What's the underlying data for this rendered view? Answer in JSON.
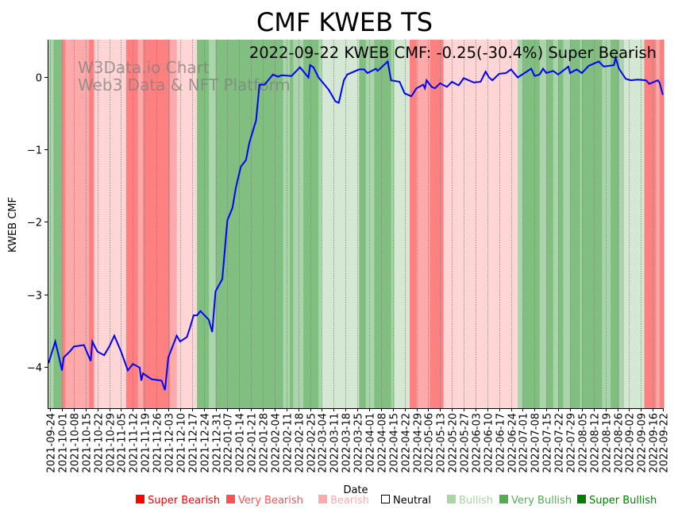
{
  "chart_data": {
    "type": "line",
    "title": "CMF KWEB TS",
    "annotation": "2022-09-22 KWEB CMF: -0.25(-30.4%) Super Bearish",
    "watermark": [
      "W3Data.io Chart",
      "Web3 Data & NFT Platform"
    ],
    "xlabel": "Date",
    "ylabel": "KWEB CMF",
    "start_date": "2021-09-24",
    "x_unit": "days since start_date",
    "xlim": [
      -1.5,
      363.5
    ],
    "ylim": [
      -4.57,
      0.51
    ],
    "yticks": [
      0,
      -1,
      -2,
      -3,
      -4
    ],
    "ytick_labels": [
      "0",
      "−1",
      "−2",
      "−3",
      "−4"
    ],
    "xtick_days": [
      0,
      7,
      14,
      21,
      28,
      35,
      42,
      49,
      56,
      63,
      70,
      77,
      84,
      91,
      98,
      105,
      112,
      119,
      126,
      133,
      140,
      147,
      154,
      161,
      168,
      175,
      182,
      189,
      196,
      203,
      210,
      217,
      224,
      231,
      238,
      245,
      252,
      259,
      266,
      273,
      280,
      287,
      294,
      301,
      308,
      315,
      322,
      329,
      336,
      343,
      350,
      357,
      363
    ],
    "xtick_labels": [
      "2021-09-24",
      "2021-10-01",
      "2021-10-08",
      "2021-10-15",
      "2021-10-22",
      "2021-10-29",
      "2021-11-05",
      "2021-11-12",
      "2021-11-19",
      "2021-11-26",
      "2021-12-03",
      "2021-12-10",
      "2021-12-17",
      "2021-12-24",
      "2021-12-31",
      "2022-01-07",
      "2022-01-14",
      "2022-01-21",
      "2022-01-28",
      "2022-02-04",
      "2022-02-11",
      "2022-02-18",
      "2022-02-25",
      "2022-03-04",
      "2022-03-11",
      "2022-03-18",
      "2022-03-25",
      "2022-04-01",
      "2022-04-08",
      "2022-04-15",
      "2022-04-22",
      "2022-04-29",
      "2022-05-06",
      "2022-05-13",
      "2022-05-20",
      "2022-05-27",
      "2022-06-03",
      "2022-06-10",
      "2022-06-17",
      "2022-06-24",
      "2022-07-01",
      "2022-07-08",
      "2022-07-15",
      "2022-07-22",
      "2022-07-29",
      "2022-08-05",
      "2022-08-12",
      "2022-08-19",
      "2022-08-26",
      "2022-09-02",
      "2022-09-09",
      "2022-09-16",
      "2022-09-22"
    ],
    "series": [
      {
        "name": "KWEB CMF",
        "color": "#0000ff",
        "x": [
          -1,
          3,
          5,
          7,
          8,
          12,
          14,
          20,
          24,
          25,
          28,
          32,
          35,
          38,
          42,
          46,
          49,
          53,
          54,
          55,
          60,
          66,
          68,
          70,
          75,
          77,
          81,
          83,
          85,
          87,
          89,
          94,
          96,
          98,
          102,
          105,
          108,
          110,
          113,
          116,
          118,
          122,
          124,
          127,
          132,
          135,
          137,
          143,
          148,
          153,
          154,
          156,
          159,
          165,
          169,
          171,
          174,
          176,
          183,
          186,
          188,
          193,
          194,
          200,
          202,
          207,
          210,
          214,
          217,
          221,
          222,
          223,
          226,
          228,
          231,
          235,
          238,
          242,
          245,
          251,
          255,
          258,
          260,
          262,
          266,
          270,
          273,
          277,
          281,
          285,
          287,
          290,
          292,
          294,
          298,
          301,
          307,
          308,
          312,
          315,
          319,
          325,
          328,
          334,
          335,
          337,
          341,
          344,
          348,
          353,
          355,
          360,
          361,
          363
        ],
        "values": [
          -3.95,
          -3.65,
          -3.84,
          -4.05,
          -3.87,
          -3.78,
          -3.72,
          -3.7,
          -3.92,
          -3.65,
          -3.79,
          -3.84,
          -3.72,
          -3.57,
          -3.79,
          -4.05,
          -3.96,
          -4.01,
          -4.19,
          -4.09,
          -4.17,
          -4.19,
          -4.32,
          -3.87,
          -3.57,
          -3.65,
          -3.59,
          -3.45,
          -3.29,
          -3.29,
          -3.23,
          -3.35,
          -3.52,
          -2.96,
          -2.79,
          -1.98,
          -1.81,
          -1.53,
          -1.24,
          -1.15,
          -0.91,
          -0.6,
          -0.11,
          -0.11,
          0.03,
          0.0,
          0.02,
          0.01,
          0.13,
          -0.01,
          0.16,
          0.13,
          -0.01,
          -0.18,
          -0.34,
          -0.36,
          -0.05,
          0.03,
          0.1,
          0.1,
          0.05,
          0.11,
          0.08,
          0.21,
          -0.05,
          -0.07,
          -0.23,
          -0.27,
          -0.16,
          -0.11,
          -0.16,
          -0.05,
          -0.14,
          -0.16,
          -0.09,
          -0.14,
          -0.07,
          -0.12,
          -0.02,
          -0.08,
          -0.07,
          0.07,
          -0.01,
          -0.05,
          0.04,
          0.05,
          0.1,
          -0.01,
          0.05,
          0.11,
          0.01,
          0.03,
          0.11,
          0.05,
          0.08,
          0.03,
          0.14,
          0.05,
          0.1,
          0.05,
          0.15,
          0.21,
          0.14,
          0.16,
          0.26,
          0.11,
          -0.03,
          -0.05,
          -0.04,
          -0.05,
          -0.1,
          -0.05,
          -0.08,
          -0.25
        ]
      }
    ],
    "band_colors": {
      "Super Bearish": "#ff8080",
      "Very Bearish": "#ffaaaa",
      "Bearish": "#ffd5d5",
      "Bullish": "#d5e8d4",
      "Very Bullish": "#aad5aa",
      "Super Bullish": "#80bf80"
    },
    "bands": [
      [
        -1.5,
        2,
        "Very Bullish"
      ],
      [
        2,
        7,
        "Super Bullish"
      ],
      [
        7,
        9,
        "Super Bearish"
      ],
      [
        9,
        23,
        "Very Bearish"
      ],
      [
        23,
        26,
        "Super Bearish"
      ],
      [
        26,
        45,
        "Bearish"
      ],
      [
        45,
        52,
        "Super Bearish"
      ],
      [
        52,
        55,
        "Very Bearish"
      ],
      [
        55,
        71,
        "Super Bearish"
      ],
      [
        71,
        75,
        "Very Bearish"
      ],
      [
        75,
        87,
        "Bearish"
      ],
      [
        87,
        94,
        "Super Bullish"
      ],
      [
        94,
        98,
        "Very Bullish"
      ],
      [
        98,
        138,
        "Super Bullish"
      ],
      [
        138,
        142,
        "Very Bullish"
      ],
      [
        142,
        144,
        "Super Bullish"
      ],
      [
        144,
        150,
        "Very Bullish"
      ],
      [
        150,
        159,
        "Super Bullish"
      ],
      [
        159,
        161,
        "Very Bullish"
      ],
      [
        161,
        183,
        "Bullish"
      ],
      [
        183,
        187,
        "Super Bullish"
      ],
      [
        187,
        192,
        "Very Bullish"
      ],
      [
        192,
        202,
        "Super Bullish"
      ],
      [
        202,
        204,
        "Very Bullish"
      ],
      [
        204,
        213,
        "Bullish"
      ],
      [
        213,
        217,
        "Super Bearish"
      ],
      [
        217,
        225,
        "Very Bearish"
      ],
      [
        225,
        233,
        "Super Bearish"
      ],
      [
        233,
        277,
        "Bearish"
      ],
      [
        277,
        280,
        "Very Bullish"
      ],
      [
        280,
        290,
        "Super Bullish"
      ],
      [
        290,
        294,
        "Very Bullish"
      ],
      [
        294,
        298,
        "Super Bullish"
      ],
      [
        298,
        301,
        "Very Bullish"
      ],
      [
        301,
        304,
        "Super Bullish"
      ],
      [
        304,
        308,
        "Very Bullish"
      ],
      [
        308,
        314,
        "Super Bullish"
      ],
      [
        314,
        315,
        "Very Bullish"
      ],
      [
        315,
        327,
        "Super Bullish"
      ],
      [
        327,
        332,
        "Very Bullish"
      ],
      [
        332,
        337,
        "Super Bullish"
      ],
      [
        337,
        340,
        "Very Bullish"
      ],
      [
        340,
        352,
        "Bullish"
      ],
      [
        352,
        359,
        "Super Bearish"
      ],
      [
        359,
        361,
        "Very Bearish"
      ],
      [
        361,
        363.5,
        "Super Bearish"
      ]
    ],
    "legend": [
      {
        "label": "Super Bearish",
        "color": "#ff0000"
      },
      {
        "label": "Very Bearish",
        "color": "#ff5050"
      },
      {
        "label": "Bearish",
        "color": "#ffaaaa"
      },
      {
        "label": "Neutral",
        "color": "#000000",
        "hollow": true
      },
      {
        "label": "Bullish",
        "color": "#a8d5a0"
      },
      {
        "label": "Very Bullish",
        "color": "#50b050"
      },
      {
        "label": "Super Bullish",
        "color": "#008000"
      }
    ],
    "legend_placement": "bottom",
    "grid": "vertical dotted"
  }
}
